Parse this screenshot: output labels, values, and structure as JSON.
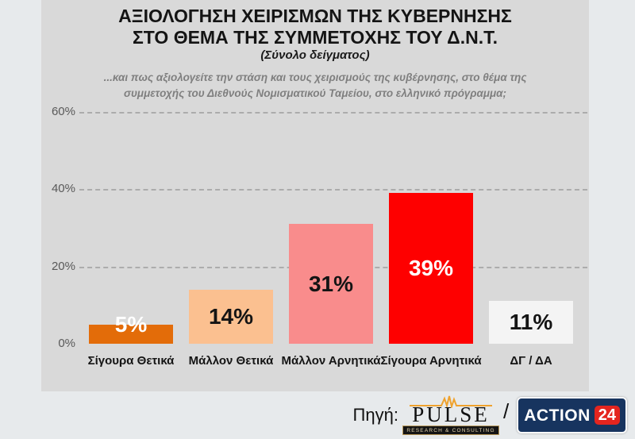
{
  "slide": {
    "title_line1": "ΑΞΙΟΛΟΓΗΣΗ ΧΕΙΡΙΣΜΩΝ ΤΗΣ ΚΥΒΕΡΝΗΣΗΣ",
    "title_line2": "ΣΤΟ ΘΕΜΑ ΤΗΣ ΣΥΜΜΕΤΟΧΗΣ ΤΟΥ Δ.Ν.Τ.",
    "subtitle": "(Σύνολο δείγματος)",
    "question_line1": "...και πως αξιολογείτε την στάση και τους χειρισμούς της κυβέρνησης, στο θέμα της",
    "question_line2": "συμμετοχής του Διεθνούς Νομισματικού Ταμείου, στο ελληνικό πρόγραμμα;"
  },
  "chart_data": {
    "type": "bar",
    "categories": [
      "Σίγουρα Θετικά",
      "Μάλλον Θετικά",
      "Μάλλον Αρνητικά",
      "Σίγουρα Αρνητικά",
      "ΔΓ / ΔΑ"
    ],
    "values": [
      5,
      14,
      31,
      39,
      11
    ],
    "value_labels": [
      "5%",
      "14%",
      "31%",
      "39%",
      "11%"
    ],
    "bar_colors": [
      "#E36C09",
      "#FBC090",
      "#F98C8C",
      "#FE0000",
      "#F4F4F4"
    ],
    "value_label_colors": [
      "#FFFFFF",
      "#141414",
      "#141414",
      "#FFFFFF",
      "#141414"
    ],
    "title": "ΑΞΙΟΛΟΓΗΣΗ ΧΕΙΡΙΣΜΩΝ ΤΗΣ ΚΥΒΕΡΝΗΣΗΣ ΣΤΟ ΘΕΜΑ ΤΗΣ ΣΥΜΜΕΤΟΧΗΣ ΤΟΥ Δ.Ν.Τ.",
    "xlabel": "",
    "ylabel": "",
    "ylim": [
      0,
      60
    ],
    "yticks": [
      0,
      20,
      40,
      60
    ],
    "ytick_labels": [
      "0%",
      "20%",
      "40%",
      "60%"
    ],
    "gridlines": [
      20,
      40,
      60
    ],
    "grid_style": "dashed",
    "legend": "none"
  },
  "footer": {
    "source_label": "Πηγή:",
    "pulse_logo": {
      "text": "PULSE",
      "tagline": "RESEARCH & CONSULTING"
    },
    "separator": "/",
    "action24_logo": {
      "text": "ACTION",
      "number": "24"
    }
  },
  "colors": {
    "page_bg": "#E7EAEC",
    "slide_bg": "#D9D9D9",
    "grid": "#ACACAC",
    "tick_text": "#595959",
    "pulse_orange": "#EFA22D",
    "action24_bg": "#17345F",
    "action24_red": "#E4251F"
  }
}
